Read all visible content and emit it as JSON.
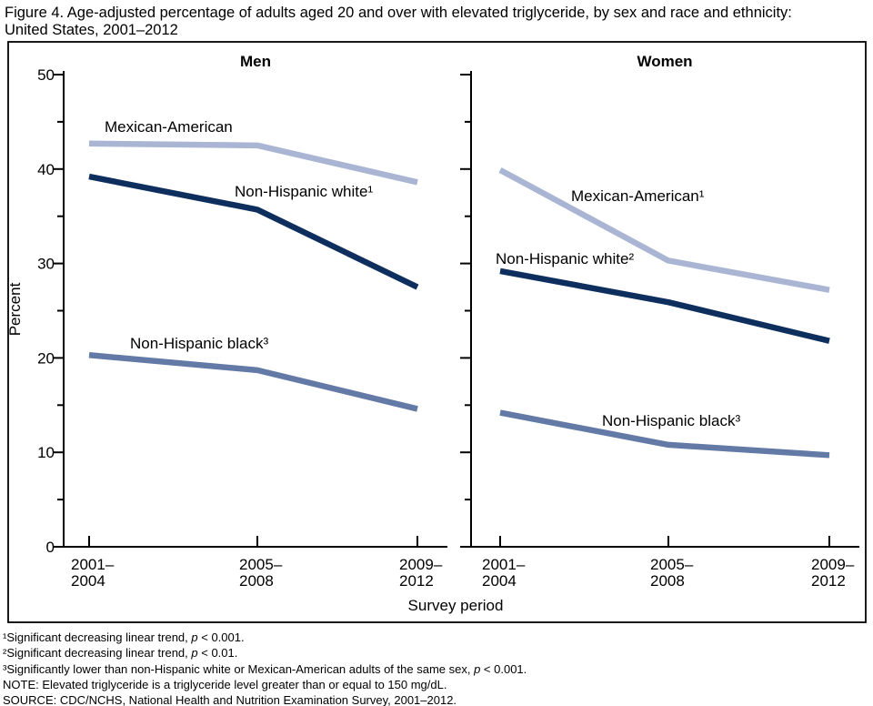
{
  "figure": {
    "title_lines": [
      "Figure 4. Age-adjusted percentage of adults aged 20 and over with elevated triglyceride, by sex and race and ethnicity:",
      "United States, 2001–2012"
    ]
  },
  "chart_data": {
    "type": "line",
    "title": "Age-adjusted percentage of adults aged 20 and over with elevated triglyceride, by sex and race and ethnicity: United States, 2001–2012",
    "xlabel": "Survey period",
    "ylabel": "Percent",
    "ylim": [
      0,
      50
    ],
    "y_major_ticks": [
      0,
      10,
      20,
      30,
      40,
      50
    ],
    "y_minor_ticks": [
      5,
      15,
      25,
      35,
      45
    ],
    "grid": "off",
    "legend_position": "labels-inline-next-to-lines",
    "categories": [
      "2001–2004",
      "2005–2008",
      "2009–2012"
    ],
    "category_tick_lines": [
      [
        "2001–",
        "2004"
      ],
      [
        "2005–",
        "2008"
      ],
      [
        "2009–",
        "2012"
      ]
    ],
    "panels": [
      {
        "title": "Men",
        "series": [
          {
            "name": "mexican-american",
            "label": "Mexican-American",
            "values": [
              42.7,
              42.5,
              38.6
            ],
            "color": "#a9b5d3"
          },
          {
            "name": "non-hispanic-white",
            "label": "Non-Hispanic white¹",
            "values": [
              39.2,
              35.7,
              27.5
            ],
            "color": "#0e2f5e"
          },
          {
            "name": "non-hispanic-black",
            "label": "Non-Hispanic black³",
            "values": [
              20.3,
              18.7,
              14.6
            ],
            "color": "#6379a6"
          }
        ]
      },
      {
        "title": "Women",
        "series": [
          {
            "name": "mexican-american",
            "label": "Mexican-American¹",
            "values": [
              39.9,
              30.3,
              27.2
            ],
            "color": "#a9b5d3"
          },
          {
            "name": "non-hispanic-white",
            "label": "Non-Hispanic white²",
            "values": [
              29.2,
              25.9,
              21.8
            ],
            "color": "#0e2f5e"
          },
          {
            "name": "non-hispanic-black",
            "label": "Non-Hispanic black³",
            "values": [
              14.2,
              10.8,
              9.7
            ],
            "color": "#6379a6"
          }
        ]
      }
    ]
  },
  "footnotes": [
    {
      "pre": "¹Significant decreasing linear trend, ",
      "p": "p",
      "post": " < 0.001."
    },
    {
      "pre": "²Significant decreasing linear trend, ",
      "p": "p",
      "post": " < 0.01."
    },
    {
      "pre": "³Significantly lower than non-Hispanic white or Mexican-American adults of the same sex, ",
      "p": "p",
      "post": " < 0.001."
    },
    {
      "pre": "NOTE: Elevated triglyceride is a triglyceride level greater than or equal to 150 mg/dL.",
      "p": "",
      "post": ""
    },
    {
      "pre": "SOURCE: CDC/NCHS, National Health and Nutrition Examination Survey, 2001–2012.",
      "p": "",
      "post": ""
    }
  ]
}
